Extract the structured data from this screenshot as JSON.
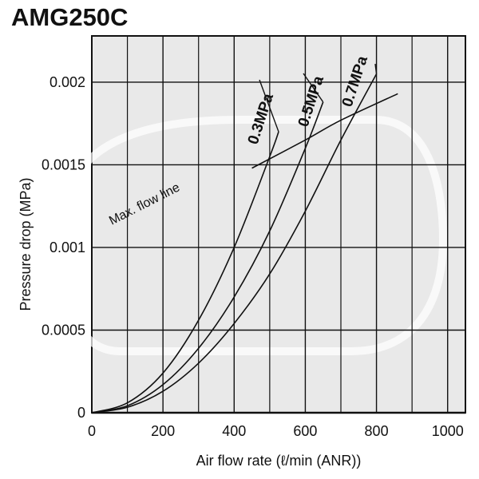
{
  "title": "AMG250C",
  "colors": {
    "plot_background": "#e9e9e9",
    "grid": "#111111",
    "curve": "#111111",
    "watermark": "#ffffff"
  },
  "chart_data": {
    "type": "line",
    "title": "AMG250C",
    "xlabel": "Air flow rate (ℓ/min (ANR))",
    "ylabel": "Pressure drop (MPa)",
    "xlim": [
      0,
      1050
    ],
    "ylim": [
      0,
      0.00228
    ],
    "x_ticks": [
      0,
      200,
      400,
      600,
      800,
      1000
    ],
    "x_tick_labels": [
      "0",
      "200",
      "400",
      "600",
      "800",
      "1000"
    ],
    "y_ticks": [
      0,
      0.0005,
      0.001,
      0.0015,
      0.002
    ],
    "y_tick_labels": [
      "0",
      "0.0005",
      "0.001",
      "0.0015",
      "0.002"
    ],
    "grid": true,
    "series": [
      {
        "name": "0.3MPa",
        "x": [
          0,
          100,
          200,
          300,
          400,
          500,
          525
        ],
        "y": [
          0,
          6e-05,
          0.00024,
          0.00056,
          0.001,
          0.00155,
          0.0017
        ]
      },
      {
        "name": "0.5MPa",
        "x": [
          0,
          100,
          200,
          300,
          400,
          500,
          600,
          650
        ],
        "y": [
          0,
          4.2e-05,
          0.00017,
          0.00039,
          0.0007,
          0.0011,
          0.0016,
          0.00188
        ]
      },
      {
        "name": "0.7MPa",
        "x": [
          0,
          100,
          200,
          300,
          400,
          500,
          600,
          700,
          800
        ],
        "y": [
          0,
          3.3e-05,
          0.00013,
          0.0003,
          0.00054,
          0.00084,
          0.00122,
          0.00165,
          0.00205
        ]
      },
      {
        "name": "Max. flow line",
        "x": [
          450,
          600,
          700,
          860
        ],
        "y": [
          0.00148,
          0.00165,
          0.00177,
          0.00193
        ]
      }
    ],
    "annotations": [
      "0.3MPa",
      "0.5MPa",
      "0.7MPa",
      "Max. flow line"
    ]
  }
}
